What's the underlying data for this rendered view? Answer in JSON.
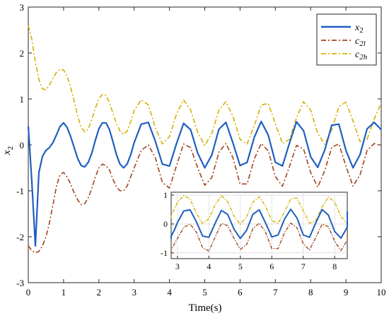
{
  "chart_data": [
    {
      "type": "line",
      "xlabel": "Time(s)",
      "ylabel": "x2",
      "xlim": [
        0,
        10
      ],
      "ylim": [
        -3,
        3
      ],
      "x_ticks": [
        "0",
        "1",
        "2",
        "3",
        "4",
        "5",
        "6",
        "7",
        "8",
        "9",
        "10"
      ],
      "y_ticks": [
        "-3",
        "-2",
        "-1",
        "0",
        "1",
        "2",
        "3"
      ],
      "grid": false,
      "legend_position": "top-right",
      "series": [
        {
          "name": "x2",
          "color": "#1f5fc0",
          "style": "solid",
          "x": [
            0,
            0.1,
            0.2,
            0.3,
            0.4,
            0.5,
            0.6,
            0.7,
            0.8,
            0.9,
            1.0,
            1.1,
            1.2,
            1.3,
            1.4,
            1.5,
            1.6,
            1.7,
            1.8,
            1.9,
            2.0,
            2.1,
            2.2,
            2.3,
            2.4,
            2.5,
            2.6,
            2.7,
            2.8,
            2.9,
            3.0,
            3.2,
            3.4,
            3.6,
            3.8,
            4.0,
            4.2,
            4.4,
            4.6,
            4.8,
            5.0,
            5.2,
            5.4,
            5.6,
            5.8,
            6.0,
            6.2,
            6.4,
            6.6,
            6.8,
            7.0,
            7.2,
            7.4,
            7.6,
            7.8,
            8.0,
            8.2,
            8.4,
            8.6,
            8.8,
            9.0,
            9.2,
            9.4,
            9.6,
            9.8,
            10.0
          ],
          "values": [
            0.4,
            -0.8,
            -2.2,
            -0.6,
            -0.25,
            -0.12,
            -0.06,
            0.05,
            0.22,
            0.4,
            0.48,
            0.38,
            0.18,
            -0.06,
            -0.3,
            -0.45,
            -0.48,
            -0.38,
            -0.18,
            0.1,
            0.35,
            0.48,
            0.48,
            0.33,
            0.06,
            -0.22,
            -0.42,
            -0.5,
            -0.42,
            -0.22,
            0.05,
            0.45,
            0.49,
            0.08,
            -0.42,
            -0.46,
            0.03,
            0.47,
            0.33,
            -0.18,
            -0.5,
            -0.22,
            0.34,
            0.49,
            0.04,
            -0.45,
            -0.38,
            0.16,
            0.51,
            0.21,
            -0.38,
            -0.46,
            0.04,
            0.5,
            0.31,
            -0.26,
            -0.49,
            -0.11,
            0.43,
            0.45,
            -0.12,
            -0.5,
            -0.21,
            0.35,
            0.49,
            0.33
          ]
        },
        {
          "name": "c2l",
          "color": "#a0461f",
          "style": "dashdot",
          "x": [
            0,
            0.1,
            0.2,
            0.3,
            0.4,
            0.5,
            0.6,
            0.7,
            0.8,
            0.9,
            1.0,
            1.1,
            1.2,
            1.3,
            1.4,
            1.5,
            1.6,
            1.7,
            1.8,
            1.9,
            2.0,
            2.1,
            2.2,
            2.3,
            2.4,
            2.5,
            2.6,
            2.7,
            2.8,
            2.9,
            3.0,
            3.2,
            3.4,
            3.6,
            3.8,
            4.0,
            4.2,
            4.4,
            4.6,
            4.8,
            5.0,
            5.2,
            5.4,
            5.6,
            5.8,
            6.0,
            6.2,
            6.4,
            6.6,
            6.8,
            7.0,
            7.2,
            7.4,
            7.6,
            7.8,
            8.0,
            8.2,
            8.4,
            8.6,
            8.8,
            9.0,
            9.2,
            9.4,
            9.6,
            9.8,
            10.0
          ],
          "values": [
            -2.2,
            -2.3,
            -2.35,
            -2.32,
            -2.2,
            -2.0,
            -1.7,
            -1.3,
            -0.9,
            -0.65,
            -0.6,
            -0.7,
            -0.85,
            -1.05,
            -1.2,
            -1.3,
            -1.28,
            -1.15,
            -0.95,
            -0.7,
            -0.5,
            -0.42,
            -0.45,
            -0.55,
            -0.75,
            -0.92,
            -1.0,
            -1.0,
            -0.9,
            -0.7,
            -0.5,
            -0.12,
            0.0,
            -0.28,
            -0.82,
            -0.94,
            -0.45,
            0.02,
            -0.06,
            -0.5,
            -0.88,
            -0.71,
            -0.16,
            0.03,
            -0.28,
            -0.85,
            -0.85,
            -0.31,
            0.03,
            -0.13,
            -0.69,
            -0.9,
            -0.47,
            -0.01,
            -0.09,
            -0.6,
            -0.92,
            -0.56,
            -0.05,
            0.02,
            -0.46,
            -0.9,
            -0.65,
            -0.12,
            0.03,
            -0.02
          ]
        },
        {
          "name": "c2h",
          "color": "#d4b000",
          "style": "dashdot",
          "x": [
            0,
            0.1,
            0.2,
            0.3,
            0.4,
            0.5,
            0.6,
            0.7,
            0.8,
            0.9,
            1.0,
            1.1,
            1.2,
            1.3,
            1.4,
            1.5,
            1.6,
            1.7,
            1.8,
            1.9,
            2.0,
            2.1,
            2.2,
            2.3,
            2.4,
            2.5,
            2.6,
            2.7,
            2.8,
            2.9,
            3.0,
            3.2,
            3.4,
            3.6,
            3.8,
            4.0,
            4.2,
            4.4,
            4.6,
            4.8,
            5.0,
            5.2,
            5.4,
            5.6,
            5.8,
            6.0,
            6.2,
            6.4,
            6.6,
            6.8,
            7.0,
            7.2,
            7.4,
            7.6,
            7.8,
            8.0,
            8.2,
            8.4,
            8.6,
            8.8,
            9.0,
            9.2,
            9.4,
            9.6,
            9.8,
            10.0
          ],
          "values": [
            2.6,
            2.3,
            1.8,
            1.42,
            1.22,
            1.2,
            1.3,
            1.45,
            1.58,
            1.65,
            1.63,
            1.5,
            1.25,
            0.95,
            0.62,
            0.38,
            0.28,
            0.35,
            0.55,
            0.8,
            1.0,
            1.1,
            1.08,
            0.92,
            0.68,
            0.45,
            0.3,
            0.23,
            0.3,
            0.5,
            0.75,
            0.98,
            0.87,
            0.37,
            0.02,
            0.18,
            0.67,
            0.98,
            0.76,
            0.27,
            -0.01,
            0.25,
            0.76,
            0.94,
            0.62,
            0.12,
            0.02,
            0.41,
            0.87,
            0.9,
            0.46,
            0.03,
            0.12,
            0.59,
            0.94,
            0.76,
            0.25,
            0.01,
            0.33,
            0.83,
            0.93,
            0.52,
            0.07,
            0.12,
            0.56,
            0.91
          ]
        }
      ]
    },
    {
      "type": "line",
      "role": "inset",
      "xlim": [
        2.8,
        8.4
      ],
      "ylim": [
        -1.2,
        1.1
      ],
      "x_ticks": [
        "3",
        "4",
        "5",
        "6",
        "7",
        "8"
      ],
      "y_ticks": [
        "-1",
        "0",
        "1"
      ],
      "grid": true,
      "series_from_main": true
    }
  ]
}
